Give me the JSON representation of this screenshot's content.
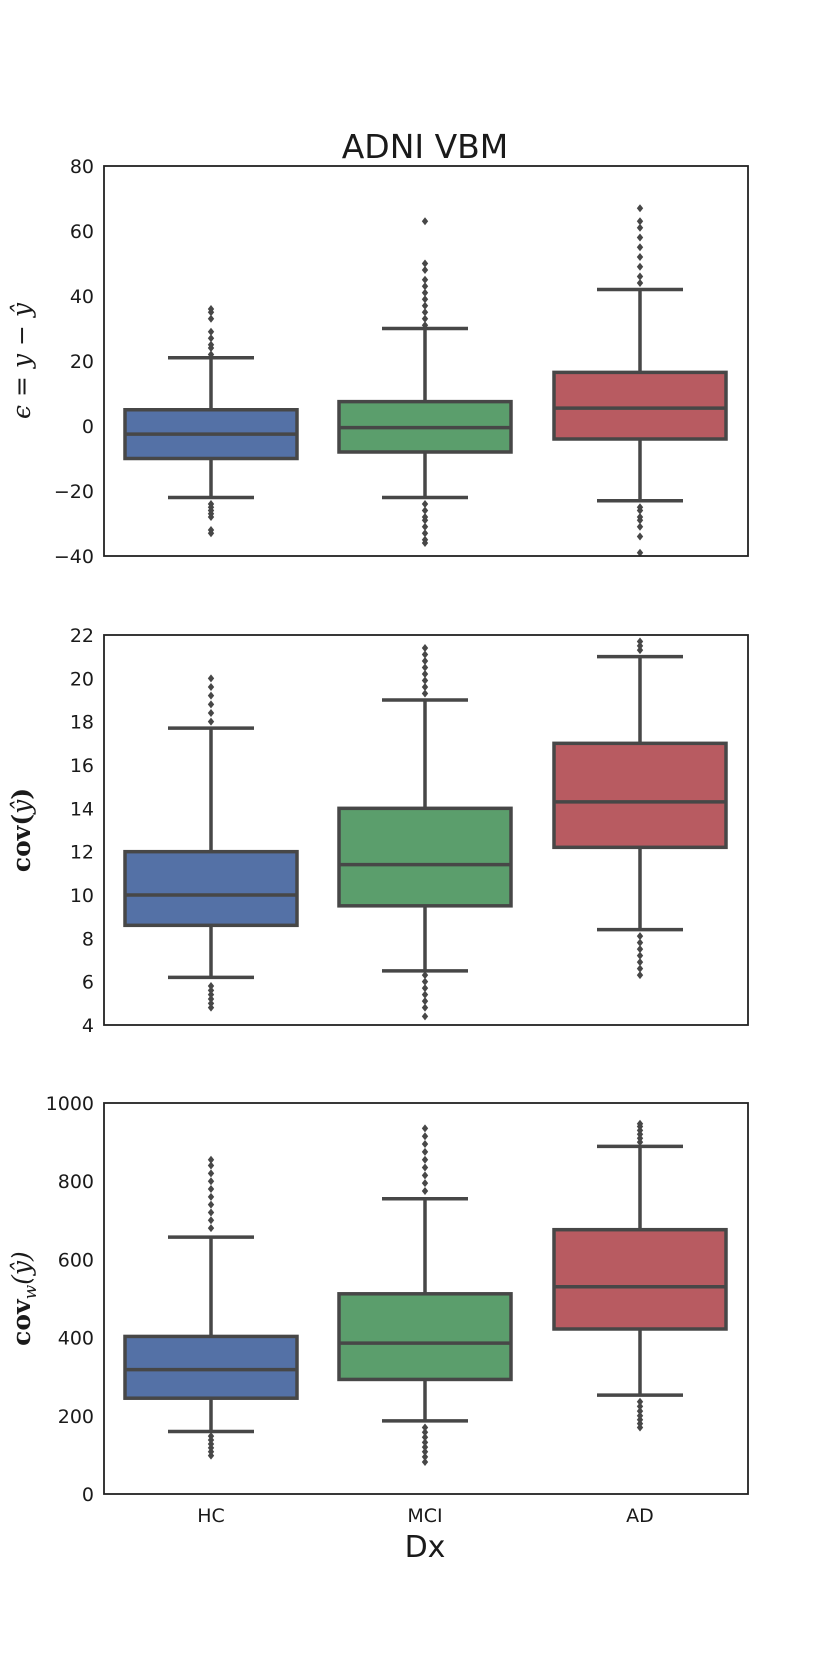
{
  "chart_data": [
    {
      "type": "box",
      "title": "ADNI VBM",
      "ylabel": "ϵ = y − ŷ",
      "ylim": [
        -40,
        80
      ],
      "yticks": [
        -40,
        -20,
        0,
        20,
        40,
        60,
        80
      ],
      "ytick_labels": [
        "−40",
        "−20",
        "0",
        "20",
        "40",
        "60",
        "80"
      ],
      "categories": [
        "HC",
        "MCI",
        "AD"
      ],
      "colors": [
        "#5471a6",
        "#5b9e6c",
        "#b85b61"
      ],
      "boxes": [
        {
          "whislo": -22,
          "q1": -10,
          "med": -2.5,
          "q3": 5,
          "whishi": 21,
          "fliers": [
            -33,
            -32,
            -28,
            -27,
            -26,
            -25,
            -24,
            22,
            24,
            25,
            27,
            29,
            33,
            35,
            36
          ]
        },
        {
          "whislo": -22,
          "q1": -8,
          "med": -0.5,
          "q3": 7.5,
          "whishi": 30,
          "fliers": [
            -36,
            -35,
            -33,
            -31,
            -29,
            -28,
            -26,
            -24,
            31,
            33,
            35,
            37,
            39,
            41,
            43,
            45,
            48,
            50,
            63
          ]
        },
        {
          "whislo": -23,
          "q1": -4,
          "med": 5.5,
          "q3": 16.5,
          "whishi": 42,
          "fliers": [
            -39,
            -34,
            -31,
            -29,
            -28,
            -26,
            -25,
            44,
            46,
            49,
            52,
            55,
            58,
            61,
            63,
            67
          ]
        }
      ]
    },
    {
      "type": "box",
      "ylabel": "cov(ŷ)",
      "ylim": [
        4,
        22
      ],
      "yticks": [
        4,
        6,
        8,
        10,
        12,
        14,
        16,
        18,
        20,
        22
      ],
      "ytick_labels": [
        "4",
        "6",
        "8",
        "10",
        "12",
        "14",
        "16",
        "18",
        "20",
        "22"
      ],
      "categories": [
        "HC",
        "MCI",
        "AD"
      ],
      "colors": [
        "#5471a6",
        "#5b9e6c",
        "#b85b61"
      ],
      "boxes": [
        {
          "whislo": 6.2,
          "q1": 8.6,
          "med": 10.0,
          "q3": 12.0,
          "whishi": 17.7,
          "fliers": [
            4.8,
            5.0,
            5.2,
            5.4,
            5.6,
            5.8,
            18.0,
            18.4,
            18.8,
            19.2,
            19.6,
            20.0
          ]
        },
        {
          "whislo": 6.5,
          "q1": 9.5,
          "med": 11.4,
          "q3": 14.0,
          "whishi": 19.0,
          "fliers": [
            4.4,
            4.8,
            5.1,
            5.4,
            5.7,
            6.0,
            6.3,
            19.3,
            19.6,
            19.9,
            20.2,
            20.5,
            20.8,
            21.1,
            21.4
          ]
        },
        {
          "whislo": 8.4,
          "q1": 12.2,
          "med": 14.3,
          "q3": 17.0,
          "whishi": 21.0,
          "fliers": [
            6.3,
            6.6,
            6.9,
            7.2,
            7.5,
            7.8,
            8.1,
            21.3,
            21.5,
            21.7
          ]
        }
      ]
    },
    {
      "type": "box",
      "ylabel": "cov_w(ŷ)",
      "xlabel": "Dx",
      "ylim": [
        0,
        1000
      ],
      "yticks": [
        0,
        200,
        400,
        600,
        800,
        1000
      ],
      "ytick_labels": [
        "0",
        "200",
        "400",
        "600",
        "800",
        "1000"
      ],
      "categories": [
        "HC",
        "MCI",
        "AD"
      ],
      "colors": [
        "#5471a6",
        "#5b9e6c",
        "#b85b61"
      ],
      "boxes": [
        {
          "whislo": 160,
          "q1": 245,
          "med": 318,
          "q3": 403,
          "whishi": 657,
          "fliers": [
            98,
            108,
            118,
            128,
            138,
            148,
            680,
            700,
            720,
            740,
            760,
            780,
            800,
            820,
            840,
            855
          ]
        },
        {
          "whislo": 187,
          "q1": 293,
          "med": 386,
          "q3": 512,
          "whishi": 755,
          "fliers": [
            82,
            95,
            108,
            120,
            132,
            145,
            158,
            170,
            775,
            795,
            815,
            835,
            855,
            875,
            895,
            915,
            935
          ]
        },
        {
          "whislo": 253,
          "q1": 422,
          "med": 530,
          "q3": 676,
          "whishi": 889,
          "fliers": [
            170,
            180,
            190,
            200,
            212,
            224,
            236,
            900,
            910,
            920,
            930,
            940,
            947
          ]
        }
      ]
    }
  ]
}
